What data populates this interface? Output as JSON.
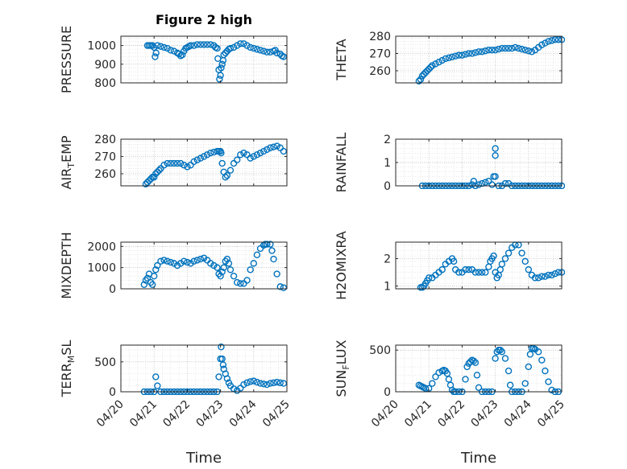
{
  "figure": {
    "title": "Figure 2 high",
    "marker_color": "#0072BD",
    "x_tick_labels": [
      "04/20",
      "04/21",
      "04/22",
      "04/23",
      "04/24",
      "04/25"
    ],
    "xlabel": "Time"
  },
  "chart_data": [
    {
      "type": "scatter",
      "title": "Figure 2 high",
      "xlabel": "",
      "ylabel": "PRESSURE",
      "ylabel_parts": [
        "PRESSURE"
      ],
      "x_range_days": [
        0,
        5
      ],
      "ylim": [
        800,
        1050
      ],
      "yticks": [
        800,
        900,
        1000
      ],
      "grid": true,
      "minor_grid": true,
      "x": [
        0.8,
        0.85,
        0.9,
        0.95,
        1.0,
        1.03,
        1.06,
        1.1,
        1.2,
        1.3,
        1.4,
        1.5,
        1.6,
        1.7,
        1.75,
        1.8,
        1.85,
        1.9,
        1.95,
        2.0,
        2.05,
        2.1,
        2.2,
        2.3,
        2.4,
        2.5,
        2.6,
        2.7,
        2.8,
        2.85,
        2.9,
        2.92,
        2.95,
        2.97,
        3.0,
        3.02,
        3.05,
        3.08,
        3.1,
        3.15,
        3.2,
        3.25,
        3.3,
        3.4,
        3.5,
        3.6,
        3.7,
        3.8,
        3.9,
        4.0,
        4.1,
        4.2,
        4.3,
        4.4,
        4.5,
        4.6,
        4.65,
        4.7,
        4.8,
        4.85,
        4.9
      ],
      "y": [
        1000,
        1000,
        1000,
        1000,
        990,
        940,
        960,
        1000,
        995,
        990,
        985,
        975,
        970,
        960,
        955,
        945,
        950,
        970,
        985,
        990,
        995,
        1000,
        1000,
        1005,
        1005,
        1005,
        1005,
        1005,
        1000,
        990,
        985,
        930,
        870,
        820,
        840,
        880,
        900,
        920,
        950,
        960,
        970,
        980,
        985,
        990,
        1000,
        1010,
        1010,
        1000,
        990,
        985,
        980,
        975,
        970,
        965,
        965,
        970,
        975,
        960,
        955,
        945,
        940
      ]
    },
    {
      "type": "scatter",
      "title": "",
      "xlabel": "",
      "ylabel": "THETA",
      "ylabel_parts": [
        "THETA"
      ],
      "x_range_days": [
        0,
        5
      ],
      "ylim": [
        253,
        280
      ],
      "yticks": [
        260,
        270,
        280
      ],
      "grid": true,
      "minor_grid": true,
      "x": [
        0.7,
        0.75,
        0.8,
        0.85,
        0.9,
        0.95,
        1.0,
        1.05,
        1.1,
        1.2,
        1.3,
        1.4,
        1.5,
        1.6,
        1.7,
        1.8,
        1.9,
        2.0,
        2.1,
        2.2,
        2.3,
        2.4,
        2.5,
        2.6,
        2.7,
        2.8,
        2.9,
        3.0,
        3.1,
        3.2,
        3.3,
        3.4,
        3.5,
        3.6,
        3.7,
        3.8,
        3.9,
        4.0,
        4.1,
        4.2,
        4.3,
        4.4,
        4.5,
        4.6,
        4.7,
        4.8,
        4.9,
        5.0
      ],
      "y": [
        254,
        255,
        257,
        258,
        259,
        260,
        261,
        262,
        263,
        264,
        265,
        266,
        267,
        267.5,
        268,
        268.5,
        269,
        269,
        269.5,
        270,
        270,
        270.5,
        271,
        271,
        271.5,
        272,
        272,
        272,
        272.5,
        273,
        273,
        273,
        273,
        273.5,
        273,
        272.5,
        272,
        271.5,
        271,
        272,
        273.5,
        275,
        276,
        277,
        277.5,
        278,
        278,
        278
      ]
    },
    {
      "type": "scatter",
      "title": "",
      "xlabel": "",
      "ylabel": "AIR_TEMP",
      "ylabel_parts": [
        "AIR",
        "T",
        "EMP"
      ],
      "x_range_days": [
        0,
        5
      ],
      "ylim": [
        253,
        280
      ],
      "yticks": [
        260,
        270,
        280
      ],
      "grid": true,
      "minor_grid": true,
      "x": [
        0.75,
        0.8,
        0.85,
        0.9,
        0.95,
        1.0,
        1.05,
        1.1,
        1.15,
        1.2,
        1.3,
        1.4,
        1.5,
        1.6,
        1.7,
        1.8,
        1.9,
        2.0,
        2.1,
        2.2,
        2.3,
        2.4,
        2.5,
        2.6,
        2.7,
        2.8,
        2.9,
        2.95,
        3.0,
        3.02,
        3.05,
        3.1,
        3.15,
        3.2,
        3.3,
        3.4,
        3.5,
        3.6,
        3.7,
        3.8,
        3.9,
        4.0,
        4.1,
        4.2,
        4.3,
        4.4,
        4.5,
        4.6,
        4.7,
        4.8,
        4.9
      ],
      "y": [
        254,
        255,
        256,
        257,
        258,
        258,
        260,
        261,
        262,
        263,
        265,
        266,
        266,
        266,
        266,
        266,
        265,
        264,
        265,
        267,
        268,
        269,
        270,
        271,
        272,
        272.5,
        273,
        273,
        273,
        272,
        266,
        261,
        258,
        259,
        262,
        266,
        268,
        271,
        272,
        271,
        269,
        270,
        271,
        272,
        273,
        274,
        275,
        275.5,
        276,
        275,
        273
      ]
    },
    {
      "type": "scatter",
      "title": "",
      "xlabel": "",
      "ylabel": "RAINFALL",
      "ylabel_parts": [
        "RAINFALL"
      ],
      "x_range_days": [
        0,
        5
      ],
      "ylim": [
        0,
        2
      ],
      "yticks": [
        0,
        1,
        2
      ],
      "grid": true,
      "minor_grid": true,
      "x": [
        0.8,
        0.9,
        1.0,
        1.1,
        1.2,
        1.3,
        1.4,
        1.5,
        1.6,
        1.7,
        1.8,
        1.9,
        2.0,
        2.1,
        2.2,
        2.3,
        2.35,
        2.4,
        2.5,
        2.6,
        2.7,
        2.8,
        2.9,
        2.95,
        3.0,
        3.0,
        3.0,
        3.1,
        3.2,
        3.3,
        3.4,
        3.5,
        3.6,
        3.7,
        3.8,
        3.9,
        4.0,
        4.1,
        4.2,
        4.3,
        4.4,
        4.5,
        4.6,
        4.7,
        4.8,
        4.9,
        5.0
      ],
      "y": [
        0,
        0,
        0,
        0,
        0,
        0,
        0,
        0,
        0,
        0,
        0,
        0,
        0,
        0,
        0,
        0.05,
        0.2,
        0,
        0.05,
        0.1,
        0.15,
        0.2,
        0.05,
        0.4,
        1.6,
        1.3,
        0.4,
        0,
        0,
        0.1,
        0.1,
        0,
        0,
        0,
        0,
        0,
        0,
        0,
        0,
        0,
        0,
        0,
        0,
        0,
        0,
        0,
        0
      ]
    },
    {
      "type": "scatter",
      "title": "",
      "xlabel": "",
      "ylabel": "MIXDEPTH",
      "ylabel_parts": [
        "MIXDEPTH"
      ],
      "x_range_days": [
        0,
        5
      ],
      "ylim": [
        0,
        2200
      ],
      "yticks": [
        0,
        1000,
        2000
      ],
      "grid": true,
      "minor_grid": true,
      "x": [
        0.7,
        0.75,
        0.8,
        0.85,
        0.9,
        0.95,
        1.0,
        1.05,
        1.1,
        1.2,
        1.3,
        1.4,
        1.5,
        1.6,
        1.7,
        1.8,
        1.9,
        2.0,
        2.1,
        2.2,
        2.3,
        2.4,
        2.5,
        2.6,
        2.7,
        2.8,
        2.9,
        2.95,
        3.0,
        3.05,
        3.1,
        3.15,
        3.2,
        3.25,
        3.3,
        3.4,
        3.5,
        3.6,
        3.7,
        3.8,
        3.9,
        4.0,
        4.1,
        4.2,
        4.3,
        4.35,
        4.4,
        4.5,
        4.55,
        4.6,
        4.7,
        4.8,
        4.9
      ],
      "y": [
        200,
        400,
        500,
        700,
        300,
        200,
        600,
        900,
        1100,
        1300,
        1350,
        1300,
        1250,
        1200,
        1100,
        1200,
        1300,
        1250,
        1200,
        1300,
        1350,
        1400,
        1450,
        1350,
        1200,
        1100,
        1000,
        700,
        600,
        800,
        1000,
        1300,
        1400,
        1200,
        900,
        600,
        300,
        250,
        250,
        400,
        900,
        1200,
        1600,
        1900,
        2050,
        2100,
        2100,
        2100,
        1800,
        1400,
        700,
        100,
        50
      ]
    },
    {
      "type": "scatter",
      "title": "",
      "xlabel": "",
      "ylabel": "H2OMIXRA",
      "ylabel_parts": [
        "H2OMIXRA"
      ],
      "x_range_days": [
        0,
        5
      ],
      "ylim": [
        0.9,
        2.6
      ],
      "yticks": [
        1,
        2
      ],
      "grid": true,
      "minor_grid": true,
      "x": [
        0.75,
        0.8,
        0.85,
        0.9,
        0.95,
        1.0,
        1.1,
        1.2,
        1.3,
        1.4,
        1.5,
        1.6,
        1.7,
        1.75,
        1.8,
        1.9,
        2.0,
        2.1,
        2.2,
        2.3,
        2.4,
        2.5,
        2.6,
        2.7,
        2.8,
        2.85,
        2.9,
        2.95,
        3.0,
        3.05,
        3.1,
        3.15,
        3.2,
        3.3,
        3.4,
        3.5,
        3.6,
        3.7,
        3.8,
        3.9,
        4.0,
        4.1,
        4.2,
        4.3,
        4.4,
        4.5,
        4.6,
        4.7,
        4.8,
        4.9,
        5.0
      ],
      "y": [
        0.95,
        0.95,
        1.0,
        1.1,
        1.2,
        1.3,
        1.3,
        1.4,
        1.5,
        1.6,
        1.8,
        1.9,
        2.0,
        1.9,
        1.6,
        1.5,
        1.5,
        1.6,
        1.6,
        1.6,
        1.5,
        1.5,
        1.5,
        1.5,
        1.7,
        1.9,
        2.0,
        2.1,
        1.5,
        1.3,
        1.4,
        1.6,
        1.8,
        2.0,
        2.2,
        2.4,
        2.5,
        2.5,
        2.2,
        1.9,
        1.6,
        1.4,
        1.3,
        1.3,
        1.35,
        1.35,
        1.4,
        1.4,
        1.45,
        1.5,
        1.5
      ]
    },
    {
      "type": "scatter",
      "title": "",
      "xlabel": "",
      "ylabel": "TERR_MSL",
      "ylabel_parts": [
        "TERR",
        "M",
        "SL"
      ],
      "x_range_days": [
        0,
        5
      ],
      "ylim": [
        0,
        780
      ],
      "yticks": [
        0,
        500
      ],
      "grid": true,
      "minor_grid": true,
      "x": [
        0.7,
        0.8,
        0.9,
        1.0,
        1.05,
        1.1,
        1.2,
        1.3,
        1.4,
        1.5,
        1.6,
        1.7,
        1.8,
        1.9,
        2.0,
        2.1,
        2.2,
        2.3,
        2.4,
        2.5,
        2.6,
        2.7,
        2.8,
        2.9,
        2.95,
        3.0,
        3.02,
        3.05,
        3.08,
        3.1,
        3.15,
        3.2,
        3.25,
        3.3,
        3.4,
        3.5,
        3.6,
        3.7,
        3.8,
        3.9,
        4.0,
        4.1,
        4.2,
        4.3,
        4.4,
        4.5,
        4.6,
        4.7,
        4.8,
        4.9
      ],
      "y": [
        0,
        0,
        0,
        0,
        250,
        100,
        0,
        0,
        0,
        0,
        0,
        0,
        0,
        0,
        0,
        0,
        0,
        0,
        0,
        0,
        0,
        0,
        0,
        0,
        250,
        550,
        750,
        550,
        450,
        380,
        300,
        220,
        150,
        100,
        50,
        20,
        60,
        120,
        150,
        170,
        180,
        160,
        140,
        130,
        120,
        140,
        150,
        160,
        150,
        140
      ]
    },
    {
      "type": "scatter",
      "title": "",
      "xlabel": "",
      "ylabel": "SUN_FLUX",
      "ylabel_parts": [
        "SUN",
        "F",
        "LUX"
      ],
      "x_range_days": [
        0,
        5
      ],
      "ylim": [
        0,
        560
      ],
      "yticks": [
        0,
        500
      ],
      "grid": true,
      "minor_grid": true,
      "x": [
        0.7,
        0.75,
        0.8,
        0.85,
        0.9,
        1.0,
        1.1,
        1.2,
        1.3,
        1.4,
        1.45,
        1.5,
        1.55,
        1.6,
        1.65,
        1.7,
        1.75,
        1.8,
        1.9,
        2.0,
        2.1,
        2.15,
        2.2,
        2.25,
        2.3,
        2.35,
        2.4,
        2.45,
        2.5,
        2.6,
        2.7,
        2.8,
        2.9,
        3.0,
        3.05,
        3.1,
        3.15,
        3.2,
        3.3,
        3.4,
        3.45,
        3.5,
        3.6,
        3.7,
        3.8,
        3.9,
        4.0,
        4.05,
        4.1,
        4.15,
        4.2,
        4.3,
        4.4,
        4.5,
        4.6,
        4.7,
        4.8,
        4.9
      ],
      "y": [
        80,
        70,
        60,
        50,
        40,
        40,
        100,
        180,
        230,
        250,
        260,
        250,
        220,
        150,
        80,
        20,
        0,
        0,
        0,
        0,
        150,
        300,
        340,
        360,
        380,
        370,
        350,
        200,
        50,
        0,
        0,
        0,
        0,
        400,
        480,
        500,
        500,
        480,
        400,
        250,
        80,
        0,
        0,
        0,
        0,
        100,
        300,
        450,
        520,
        520,
        510,
        480,
        380,
        250,
        120,
        20,
        0,
        0
      ]
    }
  ]
}
